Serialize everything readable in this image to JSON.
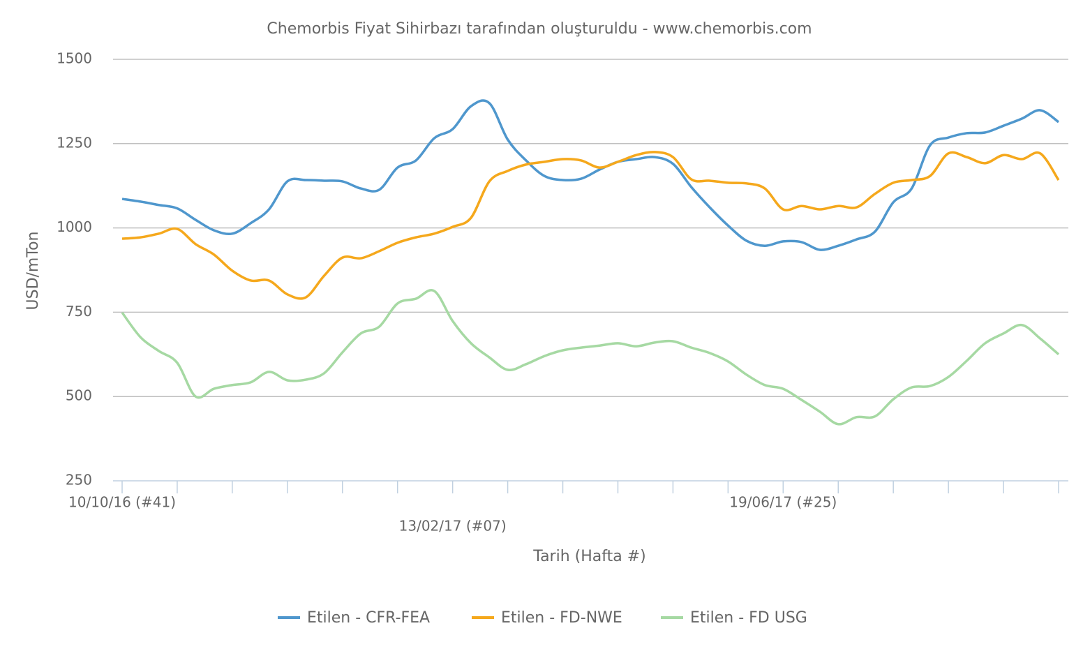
{
  "chart_data": {
    "type": "line",
    "title": "Chemorbis Fiyat Sihirbazı tarafından oluşturuldu - www.chemorbis.com",
    "x_label": "Tarih (Hafta #)",
    "y_label": "USD/mTon",
    "categories": [
      "10/10/16 (#41)",
      null,
      null,
      null,
      null,
      null,
      null,
      null,
      null,
      null,
      null,
      null,
      null,
      null,
      null,
      null,
      null,
      null,
      "13/02/17 (#07)",
      null,
      null,
      null,
      null,
      null,
      null,
      null,
      null,
      null,
      null,
      null,
      null,
      null,
      null,
      null,
      null,
      null,
      "19/06/17 (#25)",
      null,
      null,
      null,
      null,
      null,
      null,
      null,
      null,
      null,
      null,
      null,
      null,
      null,
      null,
      null
    ],
    "ylim": [
      250,
      1500
    ],
    "yticks": [
      250,
      500,
      750,
      1000,
      1250,
      1500
    ],
    "grid": true,
    "legend": "bottom",
    "series": [
      {
        "name": "Etilen - CFR-FEA",
        "color": "#4f97cd",
        "values": [
          1086,
          1078,
          1068,
          1058,
          1024,
          993,
          983,
          1014,
          1055,
          1138,
          1142,
          1140,
          1138,
          1117,
          1113,
          1179,
          1200,
          1266,
          1293,
          1361,
          1370,
          1262,
          1200,
          1154,
          1142,
          1146,
          1173,
          1196,
          1204,
          1210,
          1190,
          1121,
          1061,
          1007,
          962,
          947,
          960,
          958,
          935,
          947,
          966,
          989,
          1076,
          1117,
          1245,
          1268,
          1281,
          1283,
          1303,
          1324,
          1349,
          1314
        ]
      },
      {
        "name": "Etilen - FD-NWE",
        "color": "#f5a81c",
        "values": [
          968,
          972,
          983,
          997,
          952,
          921,
          873,
          844,
          844,
          803,
          794,
          858,
          912,
          910,
          931,
          956,
          972,
          983,
          1003,
          1030,
          1138,
          1169,
          1188,
          1196,
          1204,
          1200,
          1179,
          1196,
          1216,
          1225,
          1210,
          1144,
          1140,
          1134,
          1132,
          1117,
          1055,
          1065,
          1055,
          1065,
          1061,
          1101,
          1134,
          1142,
          1154,
          1221,
          1210,
          1192,
          1216,
          1204,
          1221,
          1142
        ]
      },
      {
        "name": "Etilen - FD USG",
        "color": "#a6d9a3",
        "values": [
          749,
          676,
          635,
          600,
          500,
          523,
          534,
          542,
          573,
          548,
          550,
          569,
          631,
          687,
          707,
          776,
          790,
          813,
          724,
          658,
          616,
          579,
          596,
          620,
          637,
          645,
          651,
          658,
          649,
          660,
          664,
          645,
          629,
          604,
          565,
          534,
          523,
          490,
          455,
          418,
          439,
          441,
          492,
          527,
          531,
          558,
          606,
          658,
          687,
          712,
          672,
          625
        ]
      }
    ]
  }
}
